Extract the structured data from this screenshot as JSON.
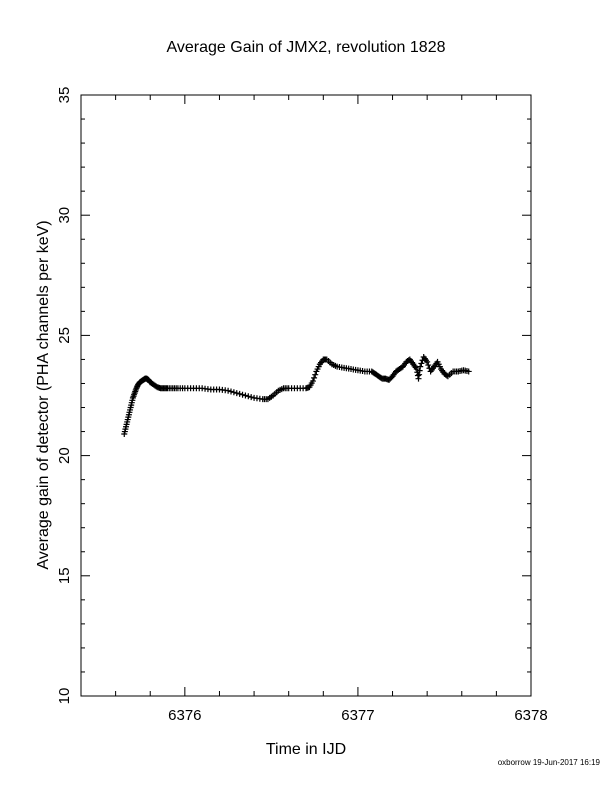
{
  "chart_data": {
    "type": "scatter",
    "title": "Average Gain of JMX2, revolution 1828",
    "xlabel": "Time in IJD",
    "ylabel": "Average gain of detector (PHA channels per keV)",
    "xlim": [
      6375.4,
      6378.0
    ],
    "ylim": [
      10,
      35
    ],
    "x_ticks": [
      6376,
      6377,
      6378
    ],
    "y_ticks": [
      10,
      15,
      20,
      25,
      30,
      35
    ],
    "x_minor_step": 0.2,
    "y_minor_step": 1,
    "grid": false,
    "legend": "none",
    "marker": "plus",
    "marker_color": "#000000",
    "points": {
      "x": [
        6375.65,
        6375.66,
        6375.67,
        6375.68,
        6375.69,
        6375.7,
        6375.71,
        6375.72,
        6375.73,
        6375.74,
        6375.75,
        6375.76,
        6375.77,
        6375.78,
        6375.79,
        6375.8,
        6375.82,
        6375.84,
        6375.86,
        6375.88,
        6375.9,
        6375.93,
        6375.96,
        6376.0,
        6376.05,
        6376.1,
        6376.15,
        6376.2,
        6376.25,
        6376.3,
        6376.35,
        6376.4,
        6376.45,
        6376.48,
        6376.51,
        6376.54,
        6376.57,
        6376.6,
        6376.65,
        6376.7,
        6376.72,
        6376.74,
        6376.76,
        6376.78,
        6376.8,
        6376.82,
        6376.85,
        6376.88,
        6376.92,
        6376.96,
        6377.0,
        6377.04,
        6377.08,
        6377.1,
        6377.12,
        6377.14,
        6377.16,
        6377.18,
        6377.2,
        6377.22,
        6377.24,
        6377.26,
        6377.28,
        6377.3,
        6377.32,
        6377.34,
        6377.35,
        6377.36,
        6377.38,
        6377.4,
        6377.42,
        6377.44,
        6377.46,
        6377.48,
        6377.5,
        6377.52,
        6377.55,
        6377.58,
        6377.61,
        6377.64
      ],
      "y": [
        20.9,
        21.2,
        21.5,
        21.8,
        22.1,
        22.4,
        22.6,
        22.8,
        22.95,
        23.05,
        23.1,
        23.15,
        23.2,
        23.2,
        23.15,
        23.05,
        22.95,
        22.85,
        22.8,
        22.8,
        22.8,
        22.8,
        22.8,
        22.8,
        22.8,
        22.8,
        22.75,
        22.75,
        22.7,
        22.6,
        22.5,
        22.4,
        22.35,
        22.35,
        22.5,
        22.7,
        22.8,
        22.8,
        22.8,
        22.8,
        22.85,
        23.1,
        23.5,
        23.8,
        24.0,
        24.0,
        23.8,
        23.7,
        23.65,
        23.6,
        23.55,
        23.5,
        23.5,
        23.4,
        23.3,
        23.2,
        23.2,
        23.15,
        23.3,
        23.5,
        23.6,
        23.7,
        23.9,
        24.0,
        23.8,
        23.6,
        23.2,
        23.7,
        24.1,
        23.9,
        23.5,
        23.7,
        23.9,
        23.6,
        23.4,
        23.3,
        23.5,
        23.5,
        23.55,
        23.5
      ]
    }
  },
  "footer": {
    "stamp": "oxborrow 19-Jun-2017 16:19"
  }
}
